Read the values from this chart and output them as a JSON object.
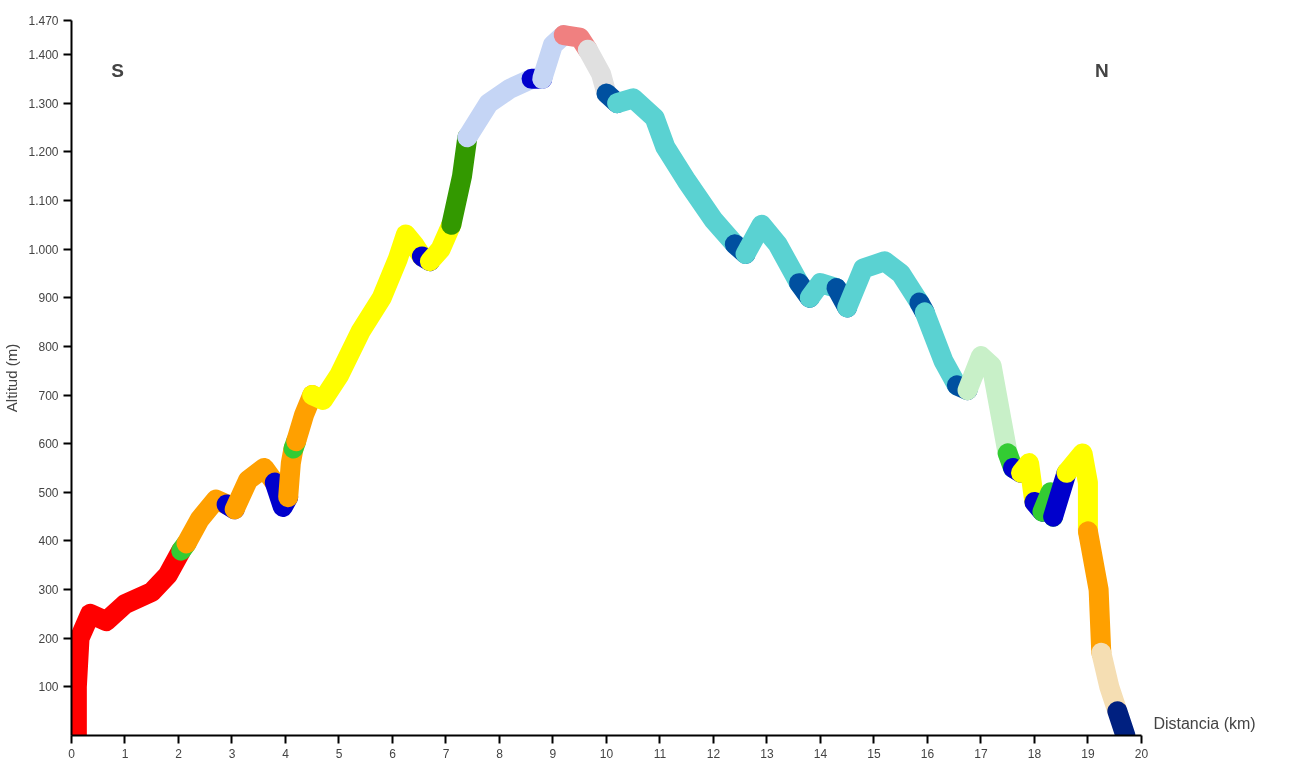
{
  "chart_data": {
    "type": "line",
    "xlabel": "Distancia (km)",
    "ylabel": "Altitud (m)",
    "annotations": [
      "S",
      "N"
    ],
    "xlim": [
      0,
      20
    ],
    "xticks": [
      0,
      1,
      2,
      3,
      4,
      5,
      6,
      7,
      8,
      9,
      10,
      11,
      12,
      13,
      14,
      15,
      16,
      17,
      18,
      19,
      20
    ],
    "ylim": [
      0,
      1470
    ],
    "yticks": [
      100,
      200,
      300,
      400,
      500,
      600,
      700,
      800,
      900,
      {
        "value": 1000,
        "label": "1.000"
      },
      {
        "value": 1100,
        "label": "1.100"
      },
      {
        "value": 1200,
        "label": "1.200"
      },
      {
        "value": 1300,
        "label": "1.300"
      },
      {
        "value": 1400,
        "label": "1.400"
      },
      {
        "value": 1470,
        "label": "1.470"
      }
    ],
    "grid": false,
    "line_style": "solid",
    "series": [
      {
        "color": "#ff0000",
        "x": [
          0.1,
          0.1,
          0.15,
          0.35,
          0.65,
          1.0,
          1.5,
          1.8,
          2.05
        ],
        "values": [
          0,
          100,
          200,
          250,
          235,
          270,
          295,
          330,
          380
        ]
      },
      {
        "color": "#33cc33",
        "x": [
          2.05,
          2.15
        ],
        "values": [
          380,
          395
        ]
      },
      {
        "color": "#ffa000",
        "x": [
          2.15,
          2.4,
          2.7,
          2.9
        ],
        "values": [
          395,
          445,
          485,
          475
        ]
      },
      {
        "color": "#0000cc",
        "x": [
          2.9,
          3.05
        ],
        "values": [
          475,
          465
        ]
      },
      {
        "color": "#ffa000",
        "x": [
          3.05,
          3.3,
          3.6,
          3.8
        ],
        "values": [
          465,
          525,
          550,
          520
        ]
      },
      {
        "color": "#0000cc",
        "x": [
          3.8,
          3.95,
          4.05
        ],
        "values": [
          520,
          470,
          490
        ]
      },
      {
        "color": "#ffa000",
        "x": [
          4.05,
          4.1,
          4.15
        ],
        "values": [
          490,
          560,
          590
        ]
      },
      {
        "color": "#33cc33",
        "x": [
          4.15,
          4.2
        ],
        "values": [
          590,
          605
        ]
      },
      {
        "color": "#ffa000",
        "x": [
          4.2,
          4.35,
          4.5
        ],
        "values": [
          605,
          660,
          700
        ]
      },
      {
        "color": "#ffff00",
        "x": [
          4.5,
          4.7,
          5.0,
          5.4,
          5.8,
          6.1,
          6.25,
          6.4,
          6.55
        ],
        "values": [
          700,
          690,
          740,
          830,
          900,
          980,
          1030,
          1010,
          985
        ]
      },
      {
        "color": "#0000cc",
        "x": [
          6.55,
          6.7
        ],
        "values": [
          985,
          975
        ]
      },
      {
        "color": "#ffff00",
        "x": [
          6.7,
          6.9,
          7.1
        ],
        "values": [
          975,
          1000,
          1050
        ]
      },
      {
        "color": "#339900",
        "x": [
          7.1,
          7.3,
          7.4
        ],
        "values": [
          1050,
          1150,
          1230
        ]
      },
      {
        "color": "#c5d5f5",
        "x": [
          7.4,
          7.8,
          8.2,
          8.6
        ],
        "values": [
          1230,
          1300,
          1330,
          1350
        ]
      },
      {
        "color": "#0000cc",
        "x": [
          8.6,
          8.8
        ],
        "values": [
          1350,
          1350
        ]
      },
      {
        "color": "#c5d5f5",
        "x": [
          8.8,
          9.0,
          9.2
        ],
        "values": [
          1350,
          1420,
          1440
        ]
      },
      {
        "color": "#f08080",
        "x": [
          9.2,
          9.5,
          9.65
        ],
        "values": [
          1440,
          1435,
          1410
        ]
      },
      {
        "color": "#e0e0e0",
        "x": [
          9.65,
          9.9,
          10.0
        ],
        "values": [
          1410,
          1360,
          1320
        ]
      },
      {
        "color": "#0050a0",
        "x": [
          10.0,
          10.2
        ],
        "values": [
          1320,
          1300
        ]
      },
      {
        "color": "#5ad2d2",
        "x": [
          10.2,
          10.5,
          10.9,
          11.1,
          11.5,
          12.0,
          12.4
        ],
        "values": [
          1300,
          1310,
          1270,
          1210,
          1140,
          1060,
          1010
        ]
      },
      {
        "color": "#0050a0",
        "x": [
          12.4,
          12.6
        ],
        "values": [
          1010,
          990
        ]
      },
      {
        "color": "#5ad2d2",
        "x": [
          12.6,
          12.9,
          13.2,
          13.6
        ],
        "values": [
          990,
          1050,
          1010,
          930
        ]
      },
      {
        "color": "#0050a0",
        "x": [
          13.6,
          13.8
        ],
        "values": [
          930,
          900
        ]
      },
      {
        "color": "#5ad2d2",
        "x": [
          13.8,
          14.0,
          14.3
        ],
        "values": [
          900,
          930,
          920
        ]
      },
      {
        "color": "#0050a0",
        "x": [
          14.3,
          14.5
        ],
        "values": [
          920,
          880
        ]
      },
      {
        "color": "#5ad2d2",
        "x": [
          14.5,
          14.8,
          15.2,
          15.5,
          15.85
        ],
        "values": [
          880,
          960,
          975,
          950,
          890
        ]
      },
      {
        "color": "#0050a0",
        "x": [
          15.85,
          15.95
        ],
        "values": [
          890,
          870
        ]
      },
      {
        "color": "#5ad2d2",
        "x": [
          15.95,
          16.3,
          16.55
        ],
        "values": [
          870,
          770,
          720
        ]
      },
      {
        "color": "#0050a0",
        "x": [
          16.55,
          16.75
        ],
        "values": [
          720,
          710
        ]
      },
      {
        "color": "#c8f0c8",
        "x": [
          16.75,
          17.0,
          17.2,
          17.4,
          17.5
        ],
        "values": [
          710,
          780,
          760,
          640,
          580
        ]
      },
      {
        "color": "#33cc33",
        "x": [
          17.5,
          17.6
        ],
        "values": [
          580,
          550
        ]
      },
      {
        "color": "#0000cc",
        "x": [
          17.6,
          17.75
        ],
        "values": [
          550,
          540
        ]
      },
      {
        "color": "#ffff00",
        "x": [
          17.75,
          17.9,
          18.0
        ],
        "values": [
          540,
          560,
          480
        ]
      },
      {
        "color": "#0000cc",
        "x": [
          18.0,
          18.15
        ],
        "values": [
          480,
          460
        ]
      },
      {
        "color": "#33cc33",
        "x": [
          18.15,
          18.3,
          18.35
        ],
        "values": [
          460,
          500,
          450
        ]
      },
      {
        "color": "#0000cc",
        "x": [
          18.35,
          18.6
        ],
        "values": [
          450,
          540
        ]
      },
      {
        "color": "#ffff00",
        "x": [
          18.6,
          18.9,
          19.0,
          19.0
        ],
        "values": [
          540,
          580,
          520,
          420
        ]
      },
      {
        "color": "#ffa000",
        "x": [
          19.0,
          19.2,
          19.25
        ],
        "values": [
          420,
          300,
          170
        ]
      },
      {
        "color": "#f5deb3",
        "x": [
          19.25,
          19.4,
          19.55
        ],
        "values": [
          170,
          100,
          50
        ]
      },
      {
        "color": "#002080",
        "x": [
          19.55,
          19.7
        ],
        "values": [
          50,
          0
        ]
      }
    ]
  }
}
